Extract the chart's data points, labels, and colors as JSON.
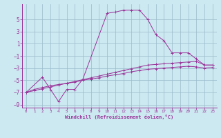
{
  "xlabel": "Windchill (Refroidissement éolien,°C)",
  "background_color": "#cce8f0",
  "line_color": "#993399",
  "grid_color": "#99bbcc",
  "xlim": [
    -0.5,
    23.5
  ],
  "ylim": [
    -9.5,
    7.5
  ],
  "xticks": [
    0,
    1,
    2,
    3,
    4,
    5,
    6,
    7,
    8,
    9,
    10,
    11,
    12,
    13,
    14,
    15,
    16,
    17,
    18,
    19,
    20,
    21,
    22,
    23
  ],
  "yticks": [
    -9,
    -7,
    -5,
    -3,
    -1,
    1,
    3,
    5
  ],
  "line1_x": [
    0,
    1,
    2,
    3,
    4,
    5,
    6,
    7,
    8,
    9,
    10,
    11,
    12,
    13,
    14,
    15,
    16,
    17,
    18,
    19,
    20,
    21,
    22,
    23
  ],
  "line1_y": [
    -7.0,
    -6.7,
    -6.4,
    -6.1,
    -5.8,
    -5.5,
    -5.2,
    -4.9,
    -4.6,
    -4.3,
    -4.0,
    -3.7,
    -3.4,
    -3.1,
    -2.8,
    -2.5,
    -2.4,
    -2.3,
    -2.2,
    -2.1,
    -2.0,
    -1.9,
    -2.5,
    -2.5
  ],
  "line2_x": [
    0,
    1,
    2,
    3,
    4,
    5,
    6,
    7,
    8,
    9,
    10,
    11,
    12,
    13,
    14,
    15,
    16,
    17,
    18,
    19,
    20,
    21,
    22,
    23
  ],
  "line2_y": [
    -7.0,
    -6.5,
    -6.2,
    -5.9,
    -5.7,
    -5.5,
    -5.3,
    -5.0,
    -4.8,
    -4.6,
    -4.3,
    -4.1,
    -3.9,
    -3.6,
    -3.4,
    -3.2,
    -3.1,
    -3.0,
    -2.9,
    -2.8,
    -2.7,
    -2.8,
    -3.0,
    -2.9
  ],
  "line3_x": [
    0,
    2,
    3,
    4,
    5,
    6,
    7,
    10,
    11,
    12,
    13,
    14,
    15,
    16,
    17,
    18,
    19,
    20,
    21,
    22,
    23
  ],
  "line3_y": [
    -7.0,
    -4.5,
    -6.5,
    -8.5,
    -6.5,
    -6.5,
    -4.8,
    6.0,
    6.2,
    6.5,
    6.5,
    6.5,
    5.0,
    2.5,
    1.5,
    -0.5,
    -0.5,
    -0.5,
    -1.5,
    -2.5,
    -2.5
  ]
}
